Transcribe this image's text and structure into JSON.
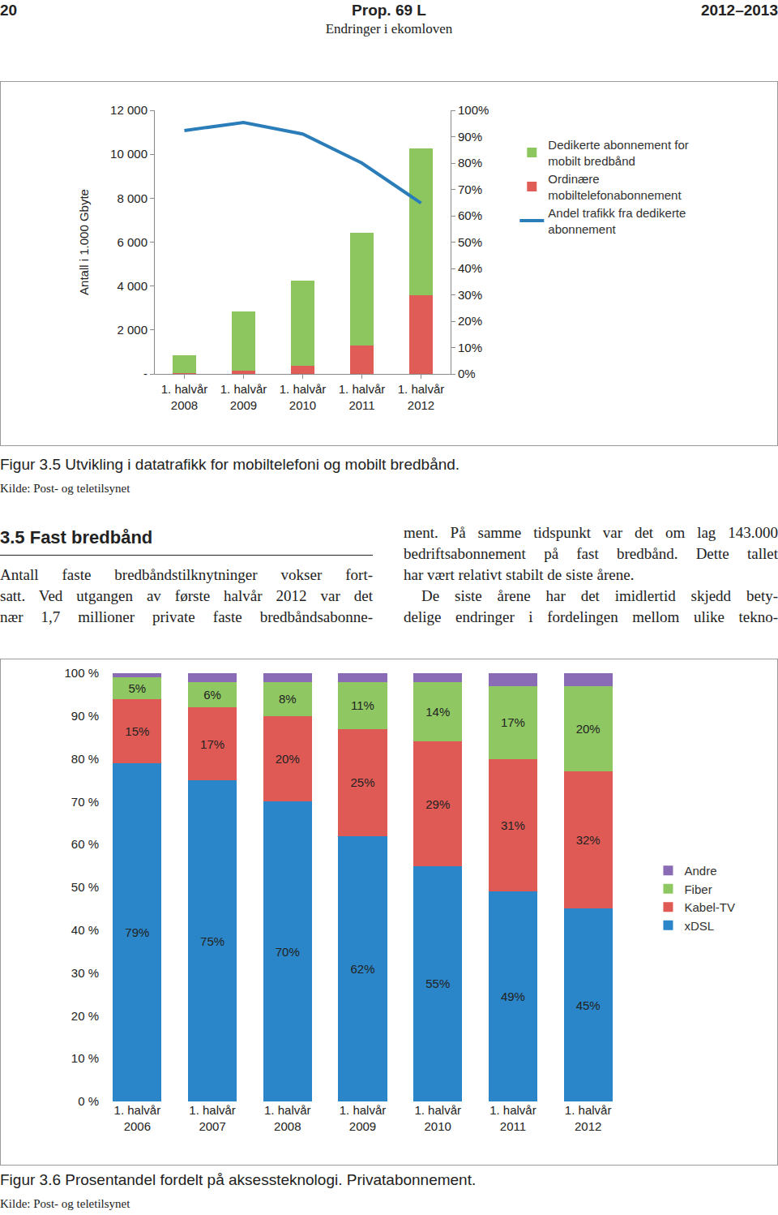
{
  "header": {
    "page": "20",
    "title": "Prop. 69 L",
    "subtitle": "Endringer i ekomloven",
    "session": "2012–2013"
  },
  "chart_data": [
    {
      "type": "bar",
      "stacked": true,
      "y_label": "Antall i 1.000 Gbyte",
      "categories": [
        "1. halvår 2008",
        "1. halvår 2009",
        "1. halvår 2010",
        "1. halvår 2011",
        "1. halvår 2012"
      ],
      "series": [
        {
          "name": "Dedikerte abonnement for mobilt bredbånd",
          "color": "#8dc65e",
          "values": [
            800,
            2700,
            3890,
            5140,
            6670
          ]
        },
        {
          "name": "Ordinære mobiltelefonabonnement",
          "color": "#e05c57",
          "values": [
            50,
            150,
            370,
            1300,
            3590
          ]
        },
        {
          "name": "Andel trafikk fra dedikerte abonnement",
          "type": "line",
          "axis": "y2",
          "color": "#2a7db8",
          "values": [
            92.3,
            95.4,
            91,
            80,
            64.8
          ]
        }
      ],
      "ylim": [
        0,
        12000
      ],
      "yticks": [
        {
          "value": 0,
          "label": "-"
        },
        {
          "value": 2000,
          "label": "2 000"
        },
        {
          "value": 4000,
          "label": "4 000"
        },
        {
          "value": 6000,
          "label": "6 000"
        },
        {
          "value": 8000,
          "label": "8 000"
        },
        {
          "value": 10000,
          "label": "10 000"
        },
        {
          "value": 12000,
          "label": "12 000"
        }
      ],
      "y2lim": [
        0,
        100
      ],
      "y2ticks": [
        {
          "value": 0,
          "label": "0%"
        },
        {
          "value": 10,
          "label": "10%"
        },
        {
          "value": 20,
          "label": "20%"
        },
        {
          "value": 30,
          "label": "30%"
        },
        {
          "value": 40,
          "label": "40%"
        },
        {
          "value": 50,
          "label": "50%"
        },
        {
          "value": 60,
          "label": "60%"
        },
        {
          "value": 70,
          "label": "70%"
        },
        {
          "value": 80,
          "label": "80%"
        },
        {
          "value": 90,
          "label": "90%"
        },
        {
          "value": 100,
          "label": "100%"
        }
      ],
      "grid": false,
      "legend": "right"
    },
    {
      "type": "bar",
      "stacked": true,
      "data_labels": true,
      "categories": [
        "1. halvår 2006",
        "1. halvår 2007",
        "1. halvår 2008",
        "1. halvår 2009",
        "1. halvår 2010",
        "1. halvår 2011",
        "1. halvår 2012"
      ],
      "series": [
        {
          "name": "xDSL",
          "color": "#2a86c8",
          "values": [
            79,
            75,
            70,
            62,
            55,
            49,
            45
          ],
          "value_labels": [
            "79%",
            "75%",
            "70%",
            "62%",
            "55%",
            "49%",
            "45%"
          ]
        },
        {
          "name": "Kabel-TV",
          "color": "#e05a55",
          "values": [
            15,
            17,
            20,
            25,
            29,
            31,
            32
          ],
          "value_labels": [
            "15%",
            "17%",
            "20%",
            "25%",
            "29%",
            "31%",
            "32%"
          ]
        },
        {
          "name": "Fiber",
          "color": "#8fc862",
          "values": [
            5,
            6,
            8,
            11,
            14,
            17,
            20
          ],
          "value_labels": [
            "5%",
            "6%",
            "8%",
            "11%",
            "14%",
            "17%",
            "20%"
          ]
        },
        {
          "name": "Andre",
          "color": "#8a6bb5",
          "values": [
            1,
            2,
            2,
            2,
            2,
            3,
            3
          ],
          "data_labels": false
        }
      ],
      "ylim": [
        0,
        100
      ],
      "yticks": [
        {
          "value": 0,
          "label": "0 %"
        },
        {
          "value": 10,
          "label": "10 %"
        },
        {
          "value": 20,
          "label": "20 %"
        },
        {
          "value": 30,
          "label": "30 %"
        },
        {
          "value": 40,
          "label": "40 %"
        },
        {
          "value": 50,
          "label": "50 %"
        },
        {
          "value": 60,
          "label": "60 %"
        },
        {
          "value": 70,
          "label": "70 %"
        },
        {
          "value": 80,
          "label": "80 %"
        },
        {
          "value": 90,
          "label": "90 %"
        },
        {
          "value": 100,
          "label": "100 %"
        }
      ],
      "grid": false,
      "legend": "right"
    }
  ],
  "figures": [
    {
      "caption": "Figur 3.5 Utvikling i datatrafikk for mobiltelefoni og mobilt bredbånd.",
      "source": "Kilde: Post- og teletilsynet"
    },
    {
      "caption": "Figur 3.6 Prosentandel fordelt på aksessteknologi. Privatabonnement.",
      "source": "Kilde: Post- og teletilsynet"
    }
  ],
  "section": {
    "heading": "3.5 Fast bredbånd",
    "columns": [
      {
        "paragraphs": [
          [
            "Antall faste bredbåndstilknytninger vokser fort-",
            "satt. Ved utgangen av første halvår 2012 var det",
            "nær 1,7 millioner private faste bredbåndsabonne-"
          ]
        ]
      },
      {
        "paragraphs": [
          [
            "ment. På samme tidspunkt var det om lag 143.000",
            "bedriftsabonnement på fast bredbånd. Dette tallet",
            "har vært relativt stabilt de siste årene."
          ],
          [
            "De siste årene har det imidlertid skjedd bety-",
            "delige endringer i fordelingen mellom ulike tekno-"
          ]
        ]
      }
    ]
  }
}
